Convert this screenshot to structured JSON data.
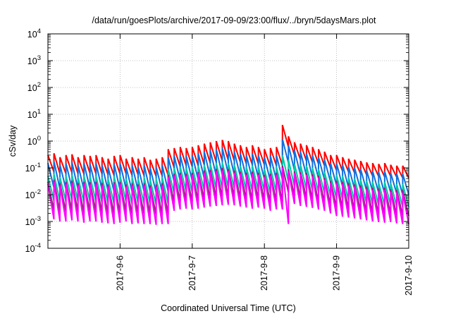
{
  "chart_data": {
    "type": "line",
    "title": "/data/run/goesPlots/archive/2017-09-09/23:00/flux/../bryn/5daysMars.plot",
    "xlabel": "Coordinated Universal Time (UTC)",
    "ylabel": "cSv/day",
    "yscale": "log",
    "ylim": [
      0.0001,
      10000
    ],
    "y_ticks": [
      {
        "exp": "-4",
        "value": 0.0001
      },
      {
        "exp": "-3",
        "value": 0.001
      },
      {
        "exp": "-2",
        "value": 0.01
      },
      {
        "exp": "-1",
        "value": 0.1
      },
      {
        "exp": "0",
        "value": 1
      },
      {
        "exp": "1",
        "value": 10
      },
      {
        "exp": "2",
        "value": 100
      },
      {
        "exp": "3",
        "value": 1000
      },
      {
        "exp": "4",
        "value": 10000
      }
    ],
    "y_tick_base": "10",
    "xlim": [
      "2017-09-05T00:00",
      "2017-09-10T00:00"
    ],
    "x_ticks": [
      "2017-9-6",
      "2017-9-7",
      "2017-9-8",
      "2017-9-9",
      "2017-9-10"
    ],
    "grid": true,
    "orbit_period_hours": 2,
    "series": [
      {
        "color": "#ff0000",
        "peaks": [
          0.3,
          0.35,
          0.25,
          0.3,
          0.32,
          0.25,
          0.3,
          0.28,
          0.3,
          0.25,
          0.22,
          0.28,
          0.3,
          0.22,
          0.25,
          0.22,
          0.25,
          0.2,
          0.22,
          0.25,
          0.5,
          0.55,
          0.6,
          0.55,
          0.6,
          0.7,
          0.8,
          0.9,
          1.0,
          1.1,
          1.0,
          0.8,
          0.7,
          0.6,
          0.7,
          0.6,
          0.5,
          0.55,
          0.6,
          4.0,
          1.5,
          0.9,
          0.8,
          0.7,
          0.6,
          0.5,
          0.4,
          0.3,
          0.3,
          0.25,
          0.22,
          0.2,
          0.18,
          0.16,
          0.15,
          0.14,
          0.15,
          0.13,
          0.12,
          0.12
        ],
        "troughs": [
          0.07,
          0.06,
          0.06,
          0.065,
          0.06,
          0.058,
          0.062,
          0.06,
          0.058,
          0.055,
          0.052,
          0.058,
          0.06,
          0.052,
          0.055,
          0.05,
          0.052,
          0.048,
          0.05,
          0.052,
          0.1,
          0.11,
          0.12,
          0.11,
          0.12,
          0.13,
          0.15,
          0.16,
          0.18,
          0.19,
          0.18,
          0.16,
          0.14,
          0.13,
          0.14,
          0.13,
          0.11,
          0.12,
          0.12,
          0.6,
          0.3,
          0.2,
          0.18,
          0.16,
          0.14,
          0.12,
          0.1,
          0.08,
          0.075,
          0.07,
          0.065,
          0.06,
          0.055,
          0.05,
          0.048,
          0.046,
          0.048,
          0.045,
          0.042,
          0.042
        ]
      },
      {
        "color": "#0f6fdf",
        "peaks": [
          0.15,
          0.18,
          0.13,
          0.15,
          0.16,
          0.13,
          0.15,
          0.14,
          0.15,
          0.13,
          0.11,
          0.14,
          0.15,
          0.11,
          0.13,
          0.11,
          0.13,
          0.1,
          0.11,
          0.13,
          0.25,
          0.28,
          0.3,
          0.28,
          0.3,
          0.35,
          0.4,
          0.45,
          0.5,
          0.55,
          0.5,
          0.4,
          0.35,
          0.3,
          0.35,
          0.3,
          0.25,
          0.28,
          0.3,
          1.2,
          0.7,
          0.45,
          0.4,
          0.35,
          0.3,
          0.25,
          0.2,
          0.15,
          0.15,
          0.13,
          0.11,
          0.1,
          0.09,
          0.08,
          0.075,
          0.07,
          0.075,
          0.065,
          0.06,
          0.06
        ],
        "troughs": [
          0.018,
          0.016,
          0.016,
          0.017,
          0.016,
          0.015,
          0.016,
          0.016,
          0.015,
          0.014,
          0.013,
          0.015,
          0.016,
          0.013,
          0.014,
          0.013,
          0.013,
          0.012,
          0.013,
          0.013,
          0.03,
          0.033,
          0.036,
          0.033,
          0.036,
          0.04,
          0.045,
          0.05,
          0.055,
          0.06,
          0.055,
          0.048,
          0.042,
          0.038,
          0.042,
          0.038,
          0.032,
          0.035,
          0.036,
          0.15,
          0.08,
          0.055,
          0.05,
          0.045,
          0.04,
          0.035,
          0.03,
          0.022,
          0.02,
          0.018,
          0.016,
          0.015,
          0.014,
          0.013,
          0.012,
          0.011,
          0.012,
          0.011,
          0.01,
          0.01
        ]
      },
      {
        "color": "#00c8a8",
        "peaks": [
          0.05,
          0.06,
          0.045,
          0.05,
          0.055,
          0.045,
          0.05,
          0.048,
          0.05,
          0.045,
          0.04,
          0.048,
          0.05,
          0.04,
          0.045,
          0.04,
          0.045,
          0.036,
          0.04,
          0.045,
          0.09,
          0.1,
          0.11,
          0.1,
          0.11,
          0.12,
          0.13,
          0.14,
          0.15,
          0.16,
          0.15,
          0.13,
          0.12,
          0.11,
          0.12,
          0.11,
          0.09,
          0.1,
          0.11,
          0.3,
          0.2,
          0.14,
          0.13,
          0.12,
          0.1,
          0.09,
          0.07,
          0.055,
          0.055,
          0.05,
          0.045,
          0.04,
          0.036,
          0.033,
          0.03,
          0.028,
          0.03,
          0.027,
          0.025,
          0.025
        ],
        "troughs": [
          0.006,
          0.0055,
          0.0055,
          0.006,
          0.0055,
          0.005,
          0.0055,
          0.0055,
          0.005,
          0.0048,
          0.0045,
          0.005,
          0.0055,
          0.0045,
          0.0048,
          0.0045,
          0.0045,
          0.0042,
          0.0045,
          0.0045,
          0.011,
          0.012,
          0.013,
          0.012,
          0.013,
          0.014,
          0.015,
          0.016,
          0.017,
          0.018,
          0.017,
          0.015,
          0.014,
          0.013,
          0.014,
          0.013,
          0.011,
          0.012,
          0.012,
          0.03,
          0.02,
          0.016,
          0.015,
          0.014,
          0.012,
          0.011,
          0.009,
          0.007,
          0.0065,
          0.006,
          0.0055,
          0.005,
          0.0046,
          0.0042,
          0.004,
          0.0038,
          0.004,
          0.0036,
          0.0034,
          0.0034
        ]
      },
      {
        "color": "#9b1f7f",
        "peaks": [
          0.03,
          0.036,
          0.027,
          0.03,
          0.033,
          0.027,
          0.03,
          0.029,
          0.03,
          0.027,
          0.024,
          0.029,
          0.03,
          0.024,
          0.027,
          0.024,
          0.027,
          0.022,
          0.024,
          0.027,
          0.055,
          0.06,
          0.065,
          0.06,
          0.065,
          0.07,
          0.08,
          0.085,
          0.09,
          0.1,
          0.09,
          0.08,
          0.072,
          0.065,
          0.072,
          0.065,
          0.055,
          0.06,
          0.065,
          0.12,
          0.09,
          0.075,
          0.07,
          0.065,
          0.058,
          0.052,
          0.042,
          0.033,
          0.033,
          0.03,
          0.027,
          0.024,
          0.022,
          0.02,
          0.018,
          0.017,
          0.018,
          0.016,
          0.015,
          0.015
        ],
        "troughs": [
          0.0025,
          0.0022,
          0.0022,
          0.0024,
          0.0022,
          0.002,
          0.0022,
          0.0022,
          0.002,
          0.0019,
          0.0018,
          0.002,
          0.0022,
          0.0018,
          0.0019,
          0.0018,
          0.0018,
          0.0017,
          0.0018,
          0.0018,
          0.005,
          0.0055,
          0.006,
          0.0055,
          0.006,
          0.0065,
          0.007,
          0.0075,
          0.008,
          0.0085,
          0.008,
          0.007,
          0.0065,
          0.006,
          0.0065,
          0.006,
          0.005,
          0.0055,
          0.0055,
          0.012,
          0.009,
          0.0075,
          0.007,
          0.0065,
          0.0055,
          0.005,
          0.004,
          0.0032,
          0.003,
          0.0028,
          0.0026,
          0.0024,
          0.0022,
          0.002,
          0.0019,
          0.0018,
          0.0019,
          0.0017,
          0.0016,
          0.0016
        ]
      },
      {
        "color": "#ff00ff",
        "peaks": [
          0.025,
          0.03,
          0.022,
          0.025,
          0.027,
          0.022,
          0.025,
          0.024,
          0.025,
          0.022,
          0.02,
          0.024,
          0.025,
          0.02,
          0.022,
          0.02,
          0.022,
          0.018,
          0.02,
          0.022,
          0.045,
          0.05,
          0.055,
          0.05,
          0.055,
          0.06,
          0.065,
          0.07,
          0.075,
          0.08,
          0.075,
          0.065,
          0.06,
          0.055,
          0.06,
          0.055,
          0.045,
          0.05,
          0.055,
          0.1,
          0.075,
          0.062,
          0.058,
          0.054,
          0.048,
          0.043,
          0.035,
          0.027,
          0.027,
          0.025,
          0.022,
          0.02,
          0.018,
          0.016,
          0.015,
          0.014,
          0.015,
          0.013,
          0.012,
          0.012
        ],
        "troughs": [
          0.0012,
          0.001,
          0.001,
          0.0011,
          0.001,
          0.0009,
          0.001,
          0.001,
          0.0009,
          0.00085,
          0.0008,
          0.0009,
          0.001,
          0.0008,
          0.00085,
          0.0008,
          0.0008,
          0.00075,
          0.0008,
          0.0008,
          0.0025,
          0.0028,
          0.003,
          0.0028,
          0.003,
          0.0033,
          0.0036,
          0.0038,
          0.004,
          0.0042,
          0.004,
          0.0036,
          0.0033,
          0.003,
          0.0033,
          0.003,
          0.0025,
          0.0028,
          0.0028,
          0.0008,
          0.0045,
          0.0038,
          0.0035,
          0.0032,
          0.0028,
          0.0025,
          0.002,
          0.0016,
          0.0015,
          0.0014,
          0.0013,
          0.0012,
          0.0011,
          0.001,
          0.00095,
          0.0009,
          0.00095,
          0.00085,
          0.0008,
          0.0008
        ]
      }
    ]
  }
}
